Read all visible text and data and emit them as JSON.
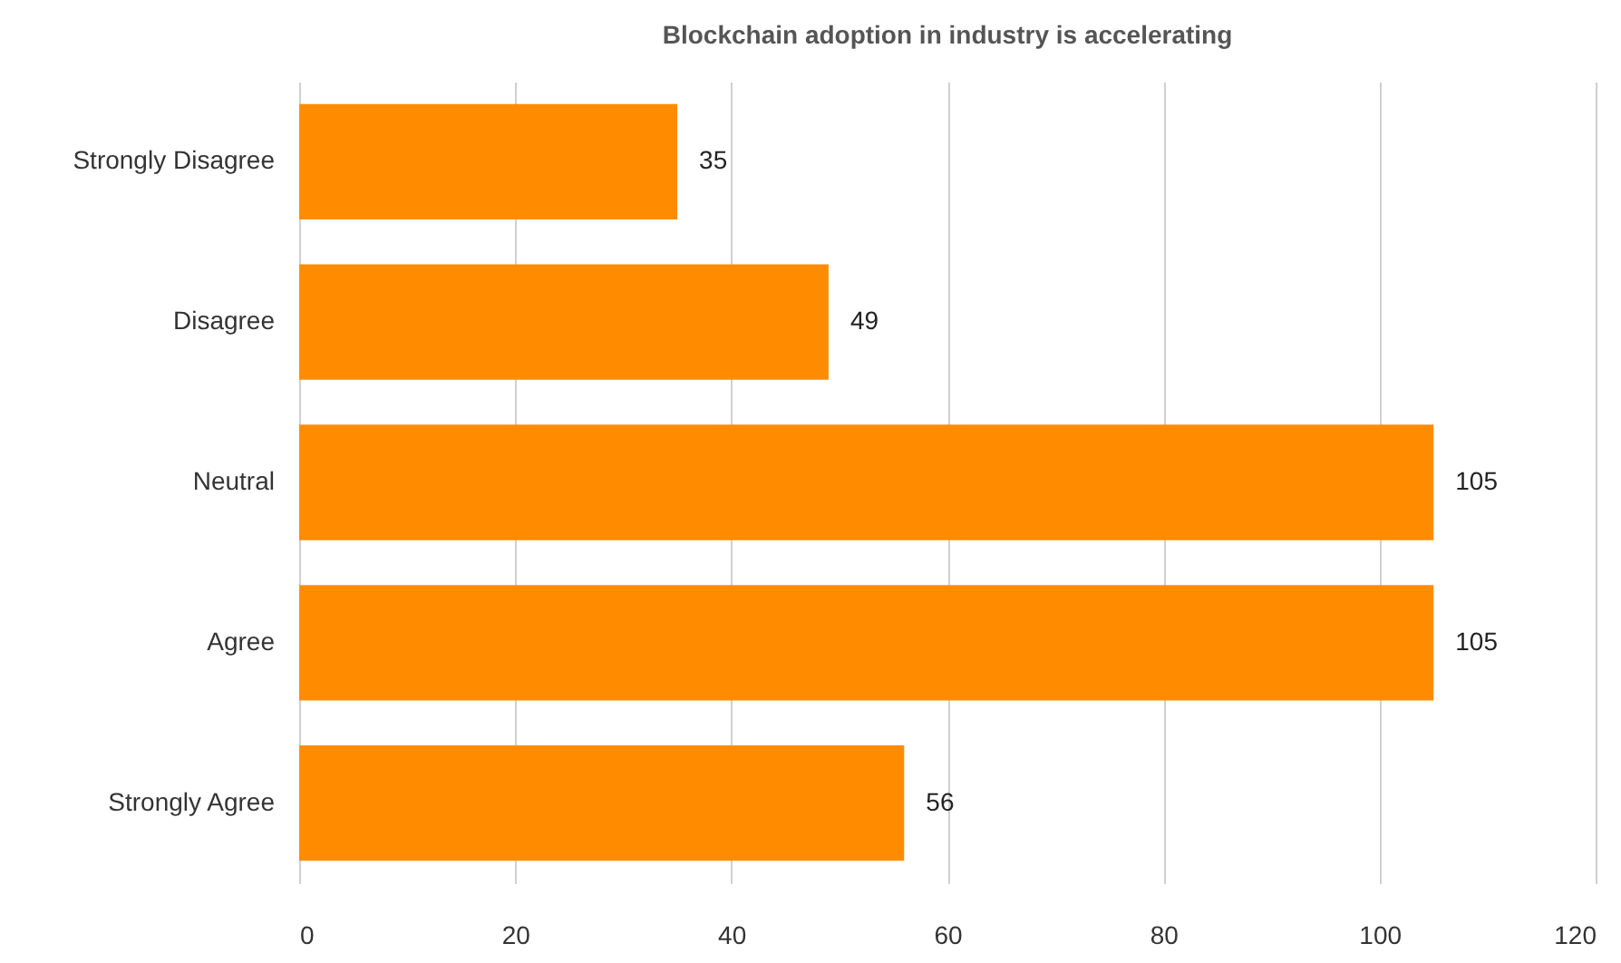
{
  "chart_data": {
    "type": "bar",
    "title": "Blockchain adoption in industry is accelerating",
    "orientation": "horizontal",
    "categories": [
      "Strongly Disagree",
      "Disagree",
      "Neutral",
      "Agree",
      "Strongly Agree"
    ],
    "values": [
      35,
      49,
      105,
      105,
      56
    ],
    "color": "#ff8c00",
    "xlim": [
      0,
      120
    ],
    "xticks": [
      0,
      20,
      40,
      60,
      80,
      100,
      120
    ],
    "grid": "x",
    "data_labels": true
  }
}
